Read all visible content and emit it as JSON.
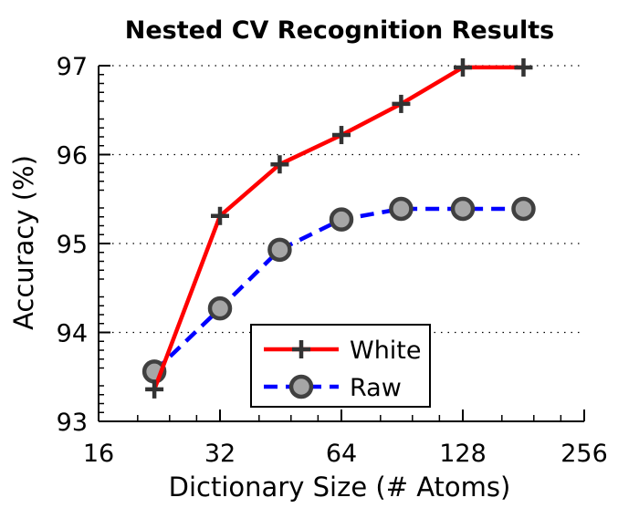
{
  "chart_data": {
    "type": "line",
    "title": "Nested CV Recognition Results",
    "xlabel": "Dictionary Size (# Atoms)",
    "ylabel": "Accuracy (%)",
    "x_scale": "log2",
    "xlim": [
      16,
      256
    ],
    "ylim": [
      93,
      97
    ],
    "xticks": [
      16,
      32,
      64,
      128,
      256
    ],
    "yticks": [
      93,
      94,
      95,
      96,
      97
    ],
    "xtick_labels": [
      "16",
      "32",
      "64",
      "128",
      "256"
    ],
    "ytick_labels": [
      "93",
      "94",
      "95",
      "96",
      "97"
    ],
    "grid": "horizontal-dotted",
    "legend_position": "bottom-center",
    "series": [
      {
        "name": "White",
        "color": "#ff0000",
        "line_style": "solid",
        "marker": "plus",
        "x": [
          22,
          32,
          45,
          64,
          90,
          128,
          181
        ],
        "y": [
          93.36,
          95.31,
          95.89,
          96.22,
          96.57,
          96.98,
          96.98
        ]
      },
      {
        "name": "Raw",
        "color": "#0000ff",
        "line_style": "dashed",
        "marker": "circle",
        "x": [
          22,
          32,
          45,
          64,
          90,
          128,
          181
        ],
        "y": [
          93.56,
          94.27,
          94.93,
          95.27,
          95.39,
          95.39,
          95.39
        ]
      }
    ]
  }
}
